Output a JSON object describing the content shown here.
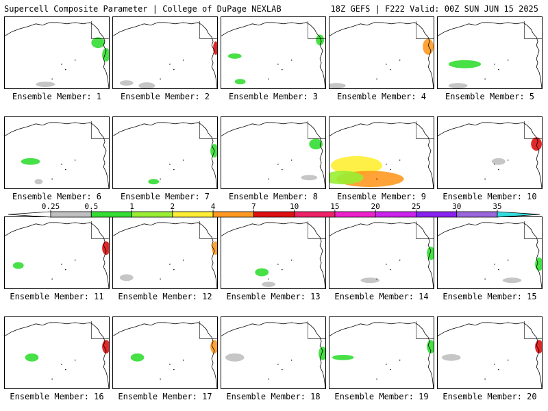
{
  "header": {
    "title_left": "Supercell Composite Parameter | College of DuPage NEXLAB",
    "title_right": "18Z GEFS | F222 Valid: 00Z SUN JUN 15 2025"
  },
  "members": [
    {
      "label": "Ensemble Member: 1"
    },
    {
      "label": "Ensemble Member: 2"
    },
    {
      "label": "Ensemble Member: 3"
    },
    {
      "label": "Ensemble Member: 4"
    },
    {
      "label": "Ensemble Member: 5"
    },
    {
      "label": "Ensemble Member: 6"
    },
    {
      "label": "Ensemble Member: 7"
    },
    {
      "label": "Ensemble Member: 8"
    },
    {
      "label": "Ensemble Member: 9"
    },
    {
      "label": "Ensemble Member: 10"
    },
    {
      "label": "Ensemble Member: 11"
    },
    {
      "label": "Ensemble Member: 12"
    },
    {
      "label": "Ensemble Member: 13"
    },
    {
      "label": "Ensemble Member: 14"
    },
    {
      "label": "Ensemble Member: 15"
    },
    {
      "label": "Ensemble Member: 16"
    },
    {
      "label": "Ensemble Member: 17"
    },
    {
      "label": "Ensemble Member: 18"
    },
    {
      "label": "Ensemble Member: 19"
    },
    {
      "label": "Ensemble Member: 20"
    }
  ],
  "colorbar": {
    "ticks": [
      "0.25",
      "0.5",
      "1",
      "2",
      "4",
      "7",
      "10",
      "15",
      "20",
      "25",
      "30",
      "35"
    ],
    "colors": [
      "#ffffff",
      "#c0c0c0",
      "#33dd33",
      "#99ee33",
      "#ffee33",
      "#ff9922",
      "#dd1111",
      "#ee2266",
      "#ee22cc",
      "#cc22ee",
      "#8822ee",
      "#9966dd",
      "#33dddd"
    ]
  }
}
